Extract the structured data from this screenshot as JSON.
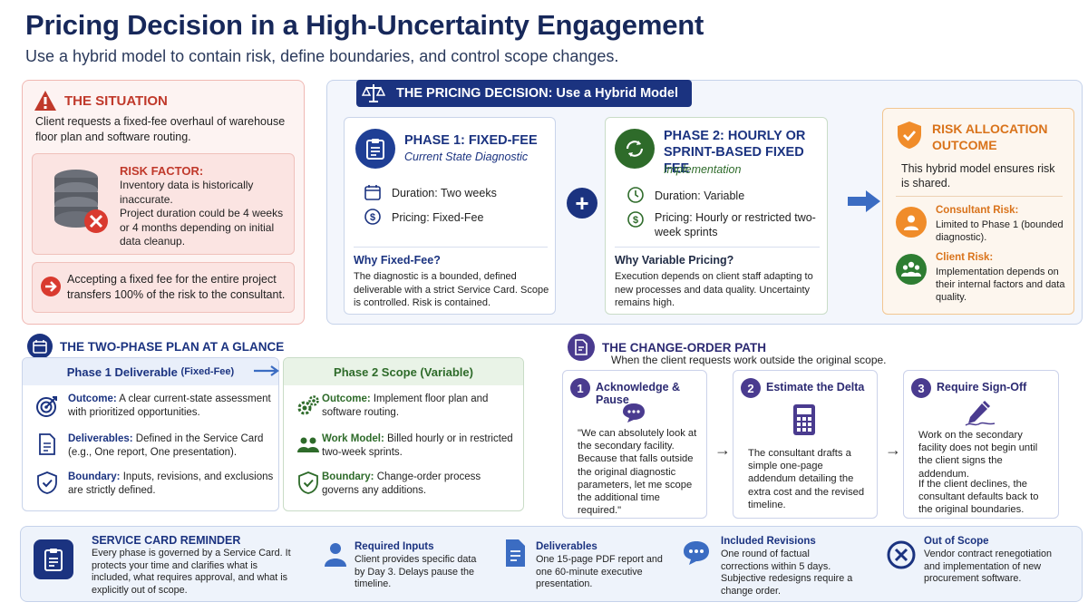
{
  "header": {
    "title": "Pricing Decision in a High-Uncertainty Engagement",
    "subtitle": "Use a hybrid model to contain risk, define boundaries, and control scope changes."
  },
  "situation": {
    "title": "THE SITUATION",
    "text": "Client requests a fixed-fee overhaul of warehouse floor plan and software routing.",
    "risk_title": "RISK FACTOR:",
    "risk_text_1": "Inventory data is historically inaccurate.",
    "risk_text_2": "Project duration could be 4 weeks or 4 months depending on initial data cleanup.",
    "warning": "Accepting a fixed fee for the entire project transfers 100% of the risk to the consultant."
  },
  "decision": {
    "banner": "THE PRICING DECISION: Use a Hybrid Model",
    "phase1": {
      "title": "PHASE 1: FIXED-FEE",
      "subtitle": "Current State Diagnostic",
      "duration_label": "Duration:",
      "duration_value": "Two weeks",
      "pricing_label": "Pricing:",
      "pricing_value": "Fixed-Fee",
      "why_title": "Why Fixed-Fee?",
      "why_text": "The diagnostic is a bounded, defined deliverable with a strict Service Card. Scope is controlled. Risk is contained."
    },
    "phase2": {
      "title_1": "PHASE 2: HOURLY OR",
      "title_2": "SPRINT-BASED FIXED FEE",
      "subtitle": "Implementation",
      "duration_label": "Duration:",
      "duration_value": "Variable",
      "pricing_label": "Pricing:",
      "pricing_value": "Hourly or restricted two-week sprints",
      "why_title": "Why Variable Pricing?",
      "why_text": "Execution depends on client staff adapting to new processes and data quality. Uncertainty remains high."
    },
    "risk_allocation": {
      "title_1": "RISK ALLOCATION",
      "title_2": "OUTCOME",
      "text": "This hybrid model ensures risk is shared.",
      "consultant_label": "Consultant Risk:",
      "consultant_text": "Limited to Phase 1 (bounded diagnostic).",
      "client_label": "Client Risk:",
      "client_text": "Implementation depends on their internal factors and data quality."
    }
  },
  "two_phase": {
    "title": "THE TWO-PHASE PLAN AT A GLANCE",
    "col1_header": "Phase 1 Deliverable",
    "col1_header_small": "(Fixed-Fee)",
    "col2_header": "Phase 2 Scope (Variable)",
    "col1_rows": [
      {
        "label": "Outcome:",
        "text": " A clear current-state assessment with prioritized opportunities."
      },
      {
        "label": "Deliverables:",
        "text": " Defined in the Service Card (e.g., One report, One presentation)."
      },
      {
        "label": "Boundary:",
        "text": " Inputs, revisions, and exclusions are strictly defined."
      }
    ],
    "col2_rows": [
      {
        "label": "Outcome:",
        "text": " Implement floor plan and software routing."
      },
      {
        "label": "Work Model:",
        "text": " Billed hourly or in restricted two-week sprints."
      },
      {
        "label": "Boundary:",
        "text": " Change-order process governs any additions."
      }
    ]
  },
  "change_order": {
    "title": "THE CHANGE-ORDER PATH",
    "subtitle": "When the client requests work outside the original scope.",
    "steps": [
      {
        "num": "1",
        "title": "Acknowledge & Pause",
        "text": "\"We can absolutely look at the secondary facility. Because that falls outside the original diagnostic parameters, let me scope the additional time required.\""
      },
      {
        "num": "2",
        "title": "Estimate the Delta",
        "text": "The consultant drafts a simple one-page addendum detailing the extra cost and the revised timeline."
      },
      {
        "num": "3",
        "title": "Require Sign-Off",
        "text": "Work on the secondary facility does not begin until the client signs the addendum.",
        "text2": "If the client declines, the consultant defaults back to the original boundaries."
      }
    ]
  },
  "service_card": {
    "title": "SERVICE CARD REMINDER",
    "text": "Every phase is governed by a Service Card. It protects your time and clarifies what is included, what requires approval, and what is explicitly out of scope.",
    "items": [
      {
        "title": "Required Inputs",
        "text": "Client provides specific data by Day 3. Delays pause the timeline."
      },
      {
        "title": "Deliverables",
        "text": "One 15-page PDF report and one 60-minute executive presentation."
      },
      {
        "title": "Included Revisions",
        "text": "One round of factual corrections within 5 days. Subjective redesigns require a change order."
      },
      {
        "title": "Out of Scope",
        "text": "Vendor contract renegotiation and implementation of new procurement software."
      }
    ]
  },
  "colors": {
    "navy": "#1b3380",
    "red": "#c0392b",
    "green": "#2e6b2a",
    "orange": "#d9731b",
    "purple": "#4a3b8f"
  }
}
